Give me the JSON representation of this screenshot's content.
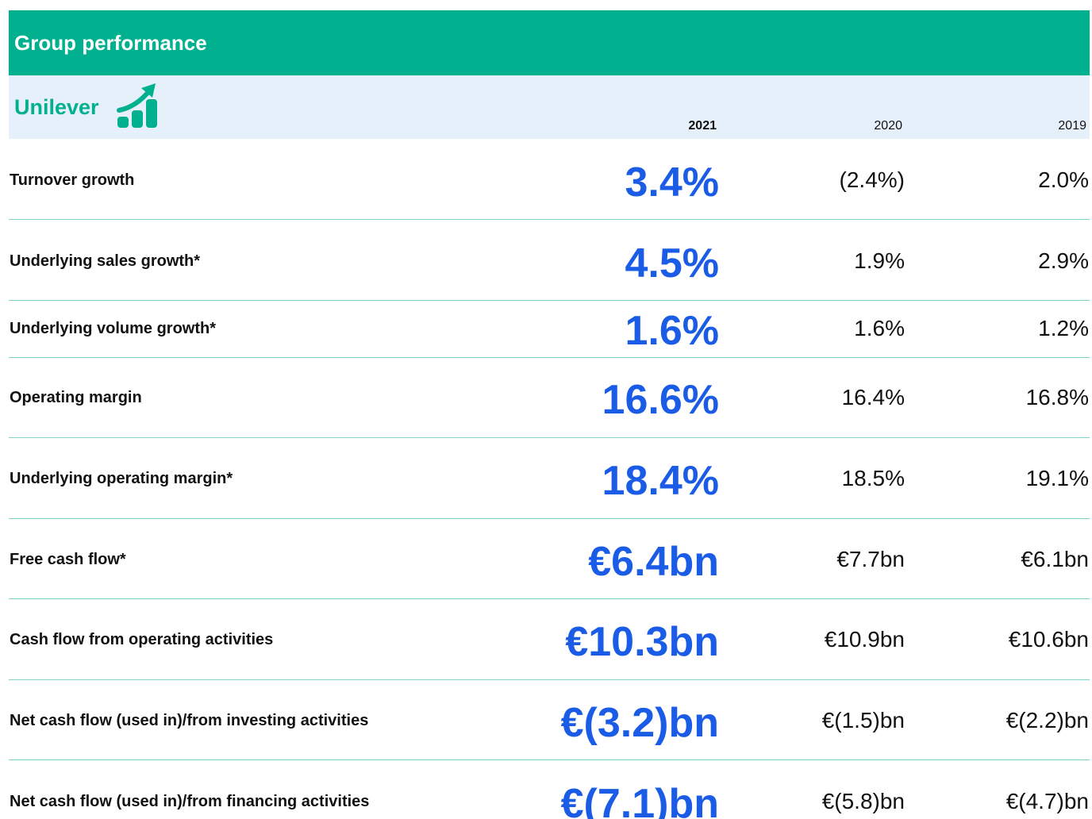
{
  "header": {
    "title": "Group performance",
    "brand": "Unilever"
  },
  "columns": [
    "2021",
    "2020",
    "2019"
  ],
  "rows": [
    {
      "label": "Turnover growth",
      "values": [
        "3.4%",
        "(2.4%)",
        "2.0%"
      ]
    },
    {
      "label": "Underlying sales growth*",
      "values": [
        "4.5%",
        "1.9%",
        "2.9%"
      ]
    },
    {
      "label": "Underlying volume growth*",
      "values": [
        "1.6%",
        "1.6%",
        "1.2%"
      ]
    },
    {
      "label": "Operating margin",
      "values": [
        "16.6%",
        "16.4%",
        "16.8%"
      ]
    },
    {
      "label": "Underlying operating margin*",
      "values": [
        "18.4%",
        "18.5%",
        "19.1%"
      ]
    },
    {
      "label": "Free cash flow*",
      "values": [
        "€6.4bn",
        "€7.7bn",
        "€6.1bn"
      ]
    },
    {
      "label": "Cash flow from operating activities",
      "values": [
        "€10.3bn",
        "€10.9bn",
        "€10.6bn"
      ]
    },
    {
      "label": "Net cash flow (used in)/from investing activities",
      "values": [
        "€(3.2)bn",
        "€(1.5)bn",
        "€(2.2)bn"
      ]
    },
    {
      "label": "Net cash flow (used in)/from financing activities",
      "values": [
        "€(7.1)bn",
        "€(5.8)bn",
        "€(4.7)bn"
      ]
    }
  ]
}
